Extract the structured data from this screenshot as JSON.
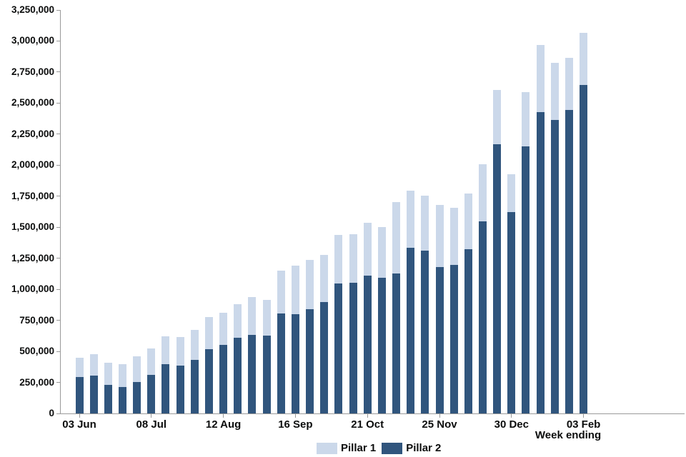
{
  "chart_data": {
    "type": "bar",
    "stacked": true,
    "title": "",
    "xlabel": "Week ending",
    "ylabel": "",
    "ylim": [
      0,
      3250000
    ],
    "ytick_step": 250000,
    "n_bars": 36,
    "x_tick_labels": [
      "03 Jun",
      "08 Jul",
      "12 Aug",
      "16 Sep",
      "21 Oct",
      "25 Nov",
      "30 Dec",
      "03 Feb"
    ],
    "x_tick_positions": [
      0,
      5,
      10,
      15,
      20,
      25,
      30,
      35
    ],
    "legend_position": "bottom",
    "grid": false,
    "axis_color": "#9a9a9a",
    "text_color": "#0b0c0c",
    "series": [
      {
        "name": "Pillar 1",
        "color": "#cbd8ea",
        "stack_order": "top",
        "values": [
          158000,
          173000,
          180000,
          180000,
          205000,
          211000,
          226000,
          233000,
          244000,
          259000,
          259000,
          269000,
          305000,
          289000,
          342000,
          393000,
          401000,
          382000,
          387000,
          393000,
          426000,
          410000,
          575000,
          464000,
          443000,
          502000,
          463000,
          451000,
          458000,
          439000,
          301000,
          437000,
          540000,
          458000,
          421000,
          420000
        ]
      },
      {
        "name": "Pillar 2",
        "color": "#30557d",
        "stack_order": "bottom",
        "values": [
          292000,
          305000,
          228000,
          215000,
          253000,
          311000,
          397000,
          384000,
          431000,
          516000,
          552000,
          611000,
          631000,
          627000,
          807000,
          800000,
          838000,
          895000,
          1049000,
          1053000,
          1110000,
          1091000,
          1126000,
          1333000,
          1313000,
          1178000,
          1194000,
          1323000,
          1549000,
          2167000,
          1624000,
          2151000,
          2426000,
          2366000,
          2445000,
          2646000
        ]
      }
    ]
  }
}
